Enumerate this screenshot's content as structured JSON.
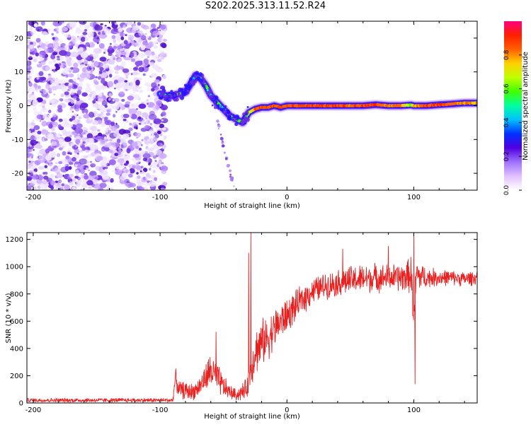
{
  "title": "S202.2025.313.11.52.R24",
  "chart_data": [
    {
      "type": "heatmap",
      "name": "spectrogram",
      "xlabel": "Height of straight line (km)",
      "ylabel": "Frequency (Hz)",
      "xlim": [
        -205,
        150
      ],
      "ylim": [
        -25,
        25
      ],
      "xticks": [
        -200,
        -100,
        0,
        100
      ],
      "yticks": [
        -20,
        -10,
        0,
        10,
        20
      ],
      "xtick_labels": [
        "-200",
        "-100",
        "0",
        "100"
      ],
      "ytick_labels": [
        "-20",
        "-10",
        "0",
        "10",
        "20"
      ],
      "noise_region_x": [
        -205,
        -98
      ],
      "signal_track": {
        "x": [
          -100,
          -95,
          -90,
          -85,
          -80,
          -75,
          -72,
          -68,
          -64,
          -60,
          -55,
          -50,
          -45,
          -40,
          -35,
          -30,
          -25,
          -20,
          -15,
          -10,
          -5,
          0,
          10,
          20,
          30,
          40,
          50,
          60,
          70,
          80,
          90,
          98,
          100,
          110,
          120,
          130,
          140,
          150
        ],
        "y": [
          3.5,
          3,
          3,
          3.5,
          4,
          7,
          9,
          8,
          6,
          3,
          1,
          -1,
          -3,
          -4,
          -5,
          -2,
          -1,
          -0.5,
          -0.5,
          0,
          -0.5,
          0,
          0,
          0,
          0,
          0,
          0,
          0,
          0.3,
          0,
          0,
          0.2,
          0,
          0,
          0.3,
          0.5,
          0.8,
          0.8
        ],
        "amp": [
          0.3,
          0.5,
          0.5,
          0.6,
          0.4,
          0.3,
          0.3,
          0.4,
          0.5,
          0.4,
          0.5,
          0.4,
          0.5,
          0.6,
          0.5,
          0.6,
          0.9,
          0.95,
          0.9,
          0.95,
          0.95,
          0.9,
          0.95,
          1.0,
          0.95,
          1.0,
          0.9,
          1.0,
          0.95,
          0.85,
          0.9,
          0.5,
          0.8,
          0.95,
          1.0,
          0.9,
          0.85,
          0.8
        ]
      },
      "diagonal_tail": {
        "x": [
          -55,
          -42
        ],
        "y": [
          -4,
          -24
        ]
      },
      "colorbar": {
        "label": "Normalized spectral amplitude",
        "range": [
          0,
          1
        ],
        "ticks": [
          "0.0",
          "0.2",
          "0.4",
          "0.6",
          "0.8"
        ],
        "tick_values": [
          0.0,
          0.2,
          0.4,
          0.6,
          0.8
        ],
        "colors": [
          "#ffffff",
          "#e0c0ff",
          "#a070ff",
          "#5000e0",
          "#0030ff",
          "#00c0ff",
          "#00ffa0",
          "#40ff00",
          "#c0ff00",
          "#ffd000",
          "#ff6000",
          "#ff2000",
          "#ff0080"
        ]
      }
    },
    {
      "type": "line",
      "name": "snr",
      "xlabel": "Height of straight line (km)",
      "ylabel": "SNR (10 * v/v)",
      "xlim": [
        -205,
        150
      ],
      "ylim": [
        0,
        1250
      ],
      "xticks": [
        -200,
        -100,
        0,
        100
      ],
      "yticks": [
        0,
        200,
        400,
        600,
        800,
        1000,
        1200
      ],
      "xtick_labels": [
        "-200",
        "-100",
        "0",
        "100"
      ],
      "ytick_labels": [
        "0",
        "200",
        "400",
        "600",
        "800",
        "1000",
        "1200"
      ],
      "color": "#e82020",
      "envelope": {
        "x": [
          -205,
          -90,
          -88,
          -85,
          -80,
          -75,
          -70,
          -65,
          -60,
          -55,
          -50,
          -45,
          -40,
          -35,
          -31,
          -29,
          -25,
          -20,
          -15,
          -10,
          -5,
          0,
          5,
          10,
          15,
          20,
          30,
          40,
          50,
          60,
          70,
          80,
          90,
          95,
          98,
          100,
          102,
          105,
          110,
          120,
          130,
          140,
          150
        ],
        "y": [
          20,
          20,
          180,
          100,
          90,
          80,
          110,
          170,
          240,
          180,
          120,
          80,
          60,
          80,
          120,
          220,
          380,
          440,
          480,
          540,
          600,
          640,
          690,
          740,
          780,
          820,
          860,
          880,
          900,
          910,
          920,
          920,
          920,
          930,
          950,
          600,
          940,
          930,
          920,
          920,
          920,
          910,
          920
        ],
        "noise": [
          15,
          15,
          70,
          60,
          60,
          60,
          60,
          90,
          130,
          110,
          80,
          50,
          40,
          60,
          70,
          110,
          160,
          160,
          150,
          140,
          130,
          120,
          110,
          100,
          100,
          90,
          90,
          90,
          100,
          100,
          100,
          90,
          100,
          110,
          130,
          150,
          130,
          100,
          70,
          60,
          50,
          50,
          50
        ]
      },
      "spikes": [
        {
          "x": -28.5,
          "y": 1250
        },
        {
          "x": -30,
          "y": 1100
        },
        {
          "x": -56,
          "y": 520
        },
        {
          "x": 100,
          "y": 1240
        },
        {
          "x": 101,
          "y": 140
        },
        {
          "x": 44,
          "y": 1130
        },
        {
          "x": 80,
          "y": 1150
        }
      ]
    }
  ]
}
